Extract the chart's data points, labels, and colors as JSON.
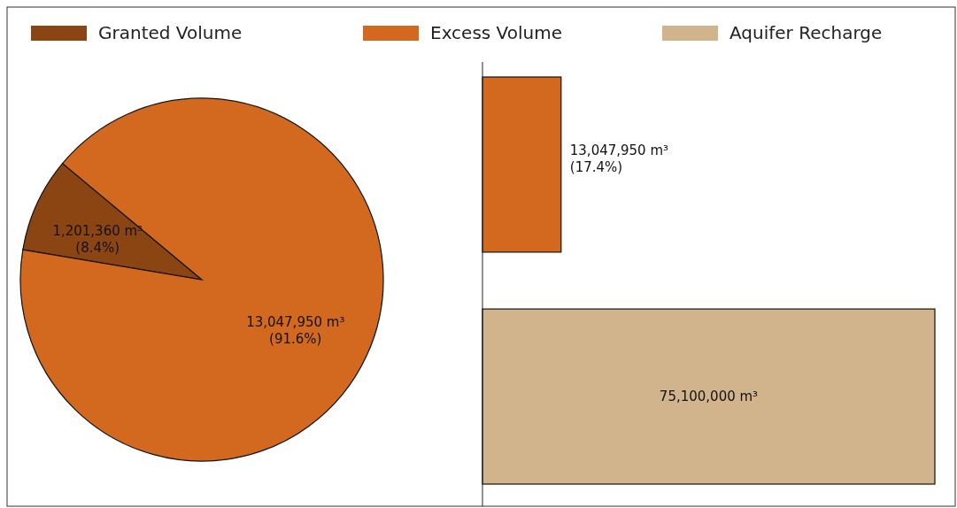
{
  "chart_data": [
    {
      "type": "pie",
      "categories": [
        "Granted Volume",
        "Excess Volume"
      ],
      "values": [
        1201360,
        13047950
      ],
      "colors": [
        "#8b4513",
        "#d2691e"
      ],
      "value_labels": [
        "1,201,360 m³\n(8.4%)",
        "13,047,950 m³\n(91.6%)"
      ],
      "legend": "top"
    },
    {
      "type": "bar",
      "orientation": "horizontal",
      "stacked": true,
      "categories": [
        null,
        null
      ],
      "series": [
        {
          "color": "#d2691e",
          "values": [
            13047950,
            null
          ],
          "value_labels": [
            "13,047,950 m³\n(17.4%)",
            null
          ]
        },
        {
          "name": "Aquifer Recharge",
          "color": "#d2b48c",
          "values": [
            null,
            75100000
          ],
          "value_labels": [
            null,
            "75,100,000 m³"
          ]
        }
      ],
      "legend": "top"
    }
  ]
}
